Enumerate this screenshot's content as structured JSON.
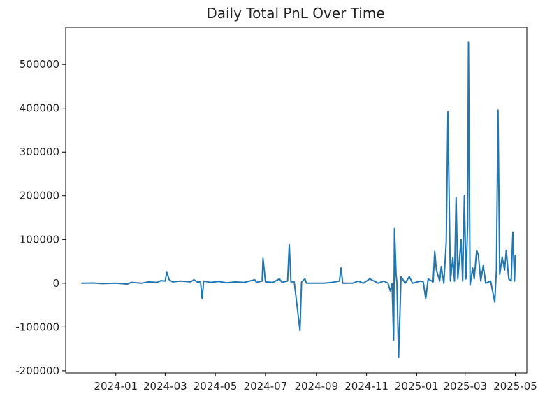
{
  "chart_data": {
    "type": "line",
    "title": "Daily Total PnL Over Time",
    "xlabel": "",
    "ylabel": "",
    "grid": false,
    "legend": "none",
    "series_color": "#1f77b4",
    "xlim": [
      "2023-11-01",
      "2025-05-15"
    ],
    "ylim": [
      -205000,
      585000
    ],
    "x_ticks": [
      "2024-01",
      "2024-03",
      "2024-05",
      "2024-07",
      "2024-09",
      "2024-11",
      "2025-01",
      "2025-03",
      "2025-05"
    ],
    "y_ticks": [
      -200000,
      -100000,
      0,
      100000,
      200000,
      300000,
      400000,
      500000
    ],
    "series": [
      {
        "points": [
          [
            "2023-11-20",
            0
          ],
          [
            "2023-12-05",
            500
          ],
          [
            "2023-12-15",
            -1000
          ],
          [
            "2024-01-01",
            0
          ],
          [
            "2024-01-15",
            -2000
          ],
          [
            "2024-01-20",
            2000
          ],
          [
            "2024-02-01",
            0
          ],
          [
            "2024-02-10",
            3000
          ],
          [
            "2024-02-20",
            2000
          ],
          [
            "2024-02-25",
            6000
          ],
          [
            "2024-03-01",
            5000
          ],
          [
            "2024-03-03",
            25000
          ],
          [
            "2024-03-06",
            8000
          ],
          [
            "2024-03-10",
            3000
          ],
          [
            "2024-03-20",
            5000
          ],
          [
            "2024-04-01",
            3000
          ],
          [
            "2024-04-05",
            8000
          ],
          [
            "2024-04-10",
            2000
          ],
          [
            "2024-04-13",
            4000
          ],
          [
            "2024-04-15",
            -35000
          ],
          [
            "2024-04-17",
            5000
          ],
          [
            "2024-04-25",
            2000
          ],
          [
            "2024-05-05",
            4000
          ],
          [
            "2024-05-15",
            1000
          ],
          [
            "2024-05-25",
            3000
          ],
          [
            "2024-06-05",
            2000
          ],
          [
            "2024-06-18",
            8000
          ],
          [
            "2024-06-20",
            2000
          ],
          [
            "2024-06-27",
            5000
          ],
          [
            "2024-06-28",
            57000
          ],
          [
            "2024-07-01",
            3000
          ],
          [
            "2024-07-10",
            2000
          ],
          [
            "2024-07-18",
            10000
          ],
          [
            "2024-07-21",
            2000
          ],
          [
            "2024-07-28",
            5000
          ],
          [
            "2024-07-30",
            88000
          ],
          [
            "2024-08-01",
            3000
          ],
          [
            "2024-08-05",
            3000
          ],
          [
            "2024-08-12",
            -108000
          ],
          [
            "2024-08-14",
            3000
          ],
          [
            "2024-08-18",
            10000
          ],
          [
            "2024-08-20",
            0
          ],
          [
            "2024-09-01",
            0
          ],
          [
            "2024-09-10",
            0
          ],
          [
            "2024-09-20",
            2000
          ],
          [
            "2024-09-29",
            5000
          ],
          [
            "2024-10-01",
            35000
          ],
          [
            "2024-10-03",
            0
          ],
          [
            "2024-10-15",
            0
          ],
          [
            "2024-10-22",
            5000
          ],
          [
            "2024-10-28",
            0
          ],
          [
            "2024-11-05",
            10000
          ],
          [
            "2024-11-15",
            0
          ],
          [
            "2024-11-22",
            5000
          ],
          [
            "2024-11-27",
            0
          ],
          [
            "2024-11-30",
            -18000
          ],
          [
            "2024-12-02",
            0
          ],
          [
            "2024-12-04",
            -130000
          ],
          [
            "2024-12-05",
            125000
          ],
          [
            "2024-12-07",
            20000
          ],
          [
            "2024-12-08",
            0
          ],
          [
            "2024-12-10",
            -170000
          ],
          [
            "2024-12-13",
            15000
          ],
          [
            "2024-12-18",
            0
          ],
          [
            "2024-12-23",
            15000
          ],
          [
            "2024-12-27",
            0
          ],
          [
            "2025-01-06",
            5000
          ],
          [
            "2025-01-09",
            3000
          ],
          [
            "2025-01-12",
            -35000
          ],
          [
            "2025-01-15",
            10000
          ],
          [
            "2025-01-21",
            3000
          ],
          [
            "2025-01-23",
            73000
          ],
          [
            "2025-01-25",
            30000
          ],
          [
            "2025-01-29",
            5000
          ],
          [
            "2025-01-31",
            38000
          ],
          [
            "2025-02-03",
            0
          ],
          [
            "2025-02-06",
            95000
          ],
          [
            "2025-02-08",
            392000
          ],
          [
            "2025-02-11",
            5000
          ],
          [
            "2025-02-14",
            58000
          ],
          [
            "2025-02-16",
            5000
          ],
          [
            "2025-02-18",
            196000
          ],
          [
            "2025-02-20",
            10000
          ],
          [
            "2025-02-24",
            100000
          ],
          [
            "2025-02-26",
            5000
          ],
          [
            "2025-02-28",
            200000
          ],
          [
            "2025-03-02",
            10000
          ],
          [
            "2025-03-04",
            130000
          ],
          [
            "2025-03-05",
            551000
          ],
          [
            "2025-03-07",
            -5000
          ],
          [
            "2025-03-10",
            35000
          ],
          [
            "2025-03-12",
            10000
          ],
          [
            "2025-03-15",
            75000
          ],
          [
            "2025-03-17",
            65000
          ],
          [
            "2025-03-20",
            5000
          ],
          [
            "2025-03-23",
            40000
          ],
          [
            "2025-03-26",
            0
          ],
          [
            "2025-04-01",
            5000
          ],
          [
            "2025-04-06",
            -43000
          ],
          [
            "2025-04-08",
            30000
          ],
          [
            "2025-04-10",
            396000
          ],
          [
            "2025-04-12",
            20000
          ],
          [
            "2025-04-15",
            60000
          ],
          [
            "2025-04-18",
            30000
          ],
          [
            "2025-04-20",
            75000
          ],
          [
            "2025-04-23",
            10000
          ],
          [
            "2025-04-26",
            5000
          ],
          [
            "2025-04-28",
            117000
          ],
          [
            "2025-04-30",
            5000
          ],
          [
            "2025-05-01",
            65000
          ]
        ]
      }
    ]
  }
}
